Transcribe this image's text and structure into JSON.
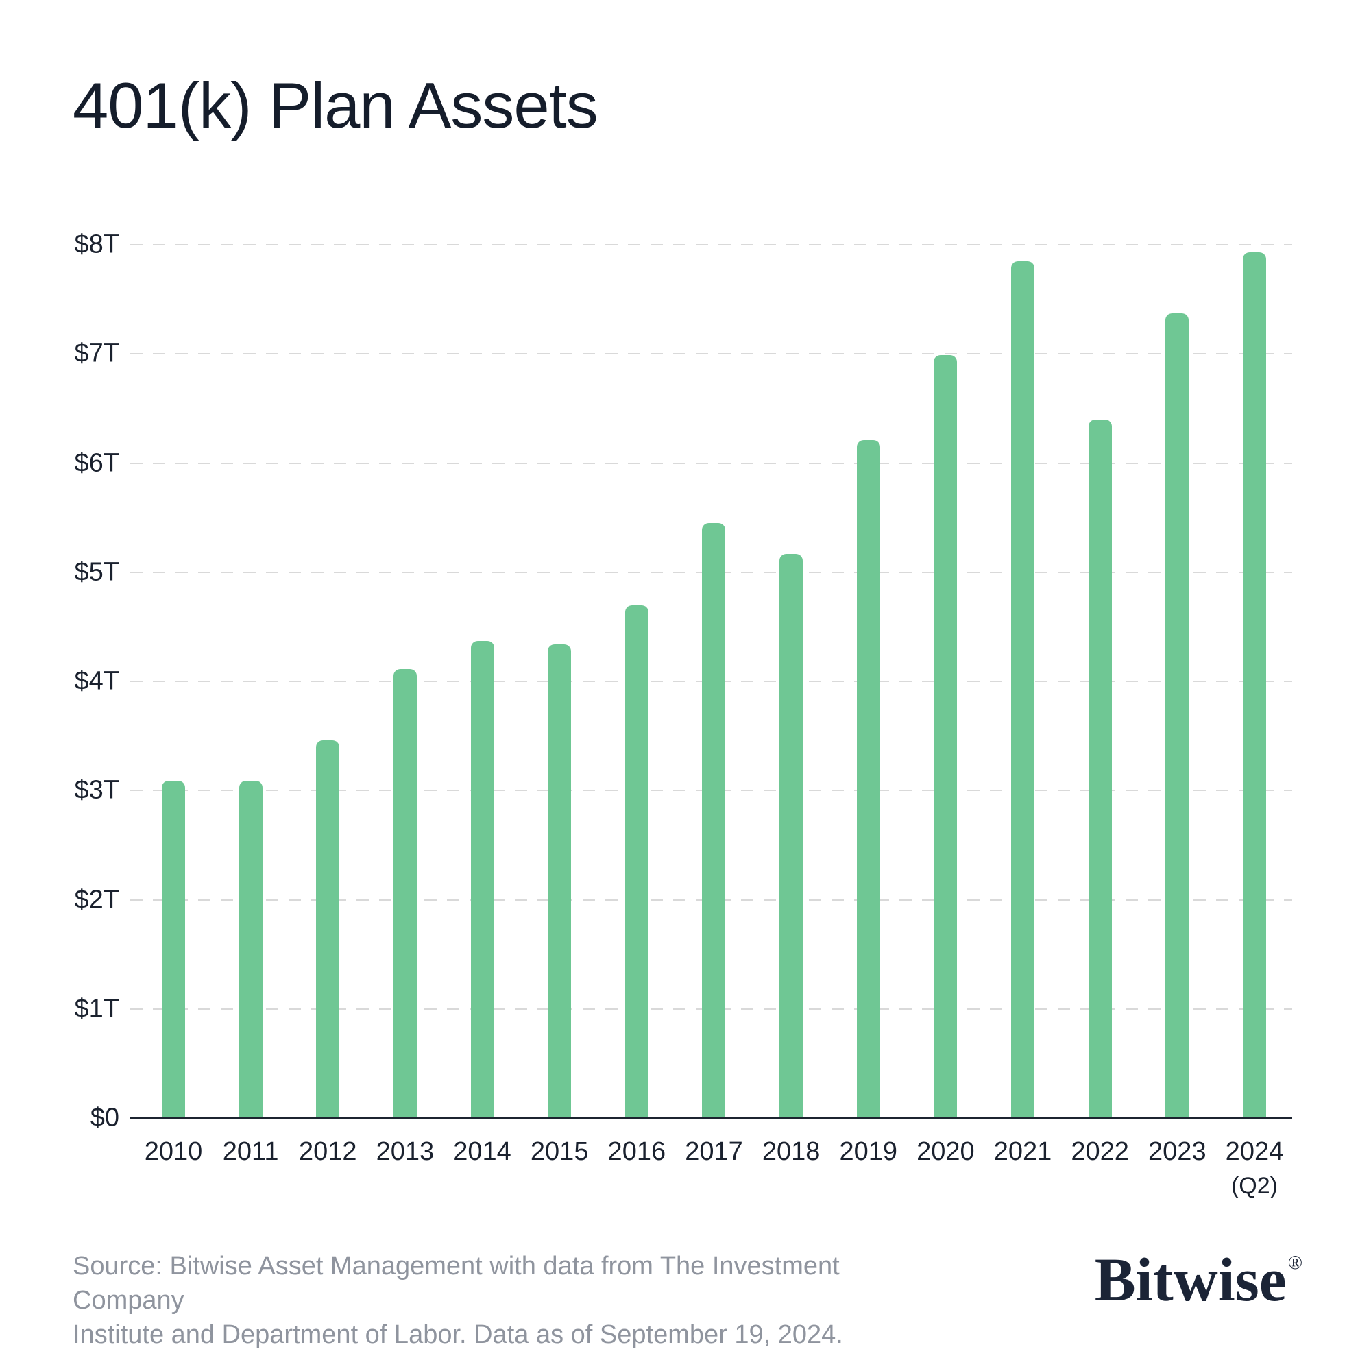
{
  "title": "401(k) Plan Assets",
  "chart_data": {
    "type": "bar",
    "title": "401(k) Plan Assets",
    "unit": "USD trillions",
    "categories": [
      "2010",
      "2011",
      "2012",
      "2013",
      "2014",
      "2015",
      "2016",
      "2017",
      "2018",
      "2019",
      "2020",
      "2021",
      "2022",
      "2023",
      "2024"
    ],
    "last_category_note": "(Q2)",
    "values": [
      3.09,
      3.09,
      3.46,
      4.11,
      4.37,
      4.34,
      4.7,
      5.45,
      5.17,
      6.21,
      6.99,
      7.85,
      6.4,
      7.37,
      7.93
    ],
    "y_ticks": [
      {
        "value": 0,
        "label": "$0"
      },
      {
        "value": 1,
        "label": "$1T"
      },
      {
        "value": 2,
        "label": "$2T"
      },
      {
        "value": 3,
        "label": "$3T"
      },
      {
        "value": 4,
        "label": "$4T"
      },
      {
        "value": 5,
        "label": "$5T"
      },
      {
        "value": 6,
        "label": "$6T"
      },
      {
        "value": 7,
        "label": "$7T"
      },
      {
        "value": 8,
        "label": "$8T"
      }
    ],
    "ylim": [
      0,
      8
    ],
    "xlabel": "",
    "ylabel": "",
    "grid": "horizontal-dashed",
    "legend": "none",
    "bar_color": "#6fc794"
  },
  "footer": {
    "source_lines": [
      "Source: Bitwise Asset Management with data from The Investment Company",
      "Institute and Department of Labor. Data as of September 19, 2024."
    ],
    "logo_text": "Bitwise",
    "logo_mark": "®"
  },
  "colors": {
    "background": "#ffffff",
    "ink": "#151d2b",
    "bar_green": "#6fc794",
    "gridline": "#d9d9d9",
    "axis": "#1c2430",
    "source_gray": "#8f949e"
  }
}
